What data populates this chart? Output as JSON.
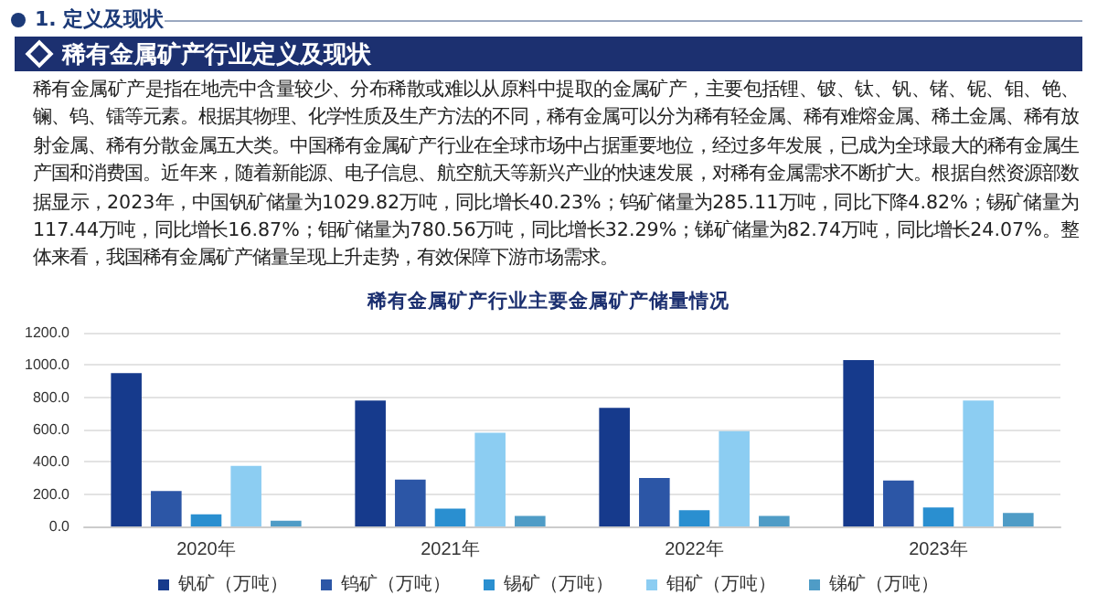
{
  "chart_data": {
    "type": "bar",
    "title": "稀有金属矿产行业主要金属矿产储量情况",
    "annotations": [
      "1. 定义及现状",
      "稀有金属矿产行业定义及现状",
      "稀有金属矿产是指在地壳中含量较少、分布稀散或难以从原料中提取的金属矿产，主要包括锂、铍、钛、钒、锗、铌、钼、铯、镧、钨、镭等元素。根据其物理、化学性质及生产方法的不同，稀有金属可以分为稀有轻金属、稀有难熔金属、稀土金属、稀有放射金属、稀有分散金属五大类。中国稀有金属矿产行业在全球市场中占据重要地位，经过多年发展，已成为全球最大的稀有金属生产国和消费国。近年来，随着新能源、电子信息、航空航天等新兴产业的快速发展，对稀有金属需求不断扩大。根据自然资源部数据显示，2023年，中国钒矿储量为1029.82万吨，同比增长40.23%；钨矿储量为285.11万吨，同比下降4.82%；锡矿储量为117.44万吨，同比增长16.87%；钼矿储量为780.56万吨，同比增长32.29%；锑矿储量为82.74万吨，同比增长24.07%。整体来看，我国稀有金属矿产储量呈现上升走势，有效保障下游市场需求。"
    ],
    "categories": [
      "2020年",
      "2021年",
      "2022年",
      "2023年"
    ],
    "series": [
      {
        "name": "钒矿（万吨）",
        "color": "#163a8c",
        "values": [
          950,
          780,
          735,
          1030
        ]
      },
      {
        "name": "钨矿（万吨）",
        "color": "#2c56a6",
        "values": [
          220,
          290,
          300,
          285
        ]
      },
      {
        "name": "锡矿（万吨）",
        "color": "#2a8fd0",
        "values": [
          75,
          110,
          100,
          117
        ]
      },
      {
        "name": "钼矿（万吨）",
        "color": "#8ccdf2",
        "values": [
          375,
          580,
          590,
          780
        ]
      },
      {
        "name": "锑矿（万吨）",
        "color": "#4f9cc6",
        "values": [
          35,
          65,
          65,
          83
        ]
      }
    ],
    "ylim": [
      0,
      1200
    ],
    "yticks": [
      {
        "value": 0,
        "label": "0.0"
      },
      {
        "value": 200,
        "label": "200.0"
      },
      {
        "value": 400,
        "label": "400.0"
      },
      {
        "value": 600,
        "label": "600.0"
      },
      {
        "value": 800,
        "label": "800.0"
      },
      {
        "value": 1000,
        "label": "1000.0"
      },
      {
        "value": 1200,
        "label": "1200.0"
      }
    ],
    "grid": "y",
    "legend": "bottom"
  }
}
